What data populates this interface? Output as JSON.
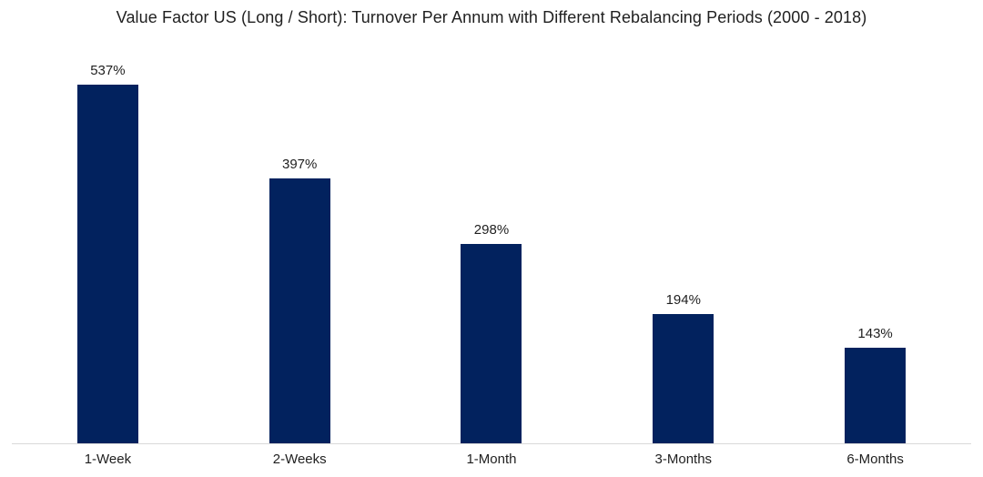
{
  "chart_data": {
    "type": "bar",
    "title": "Value Factor US (Long / Short): Turnover Per Annum with Different Rebalancing Periods (2000 - 2018)",
    "categories": [
      "1-Week",
      "2-Weeks",
      "1-Month",
      "3-Months",
      "6-Months"
    ],
    "values": [
      537,
      397,
      298,
      194,
      143
    ],
    "value_labels": [
      "537%",
      "397%",
      "298%",
      "194%",
      "143%"
    ],
    "unit": "%",
    "xlabel": "",
    "ylabel": "",
    "y_axis_visible": false,
    "grid": false,
    "legend": false,
    "data_labels_position": "outside-end",
    "colors": {
      "bar": "#02225e",
      "axis_line": "#d9d9d9",
      "text": "#1f1f1f",
      "background": "#ffffff"
    }
  }
}
